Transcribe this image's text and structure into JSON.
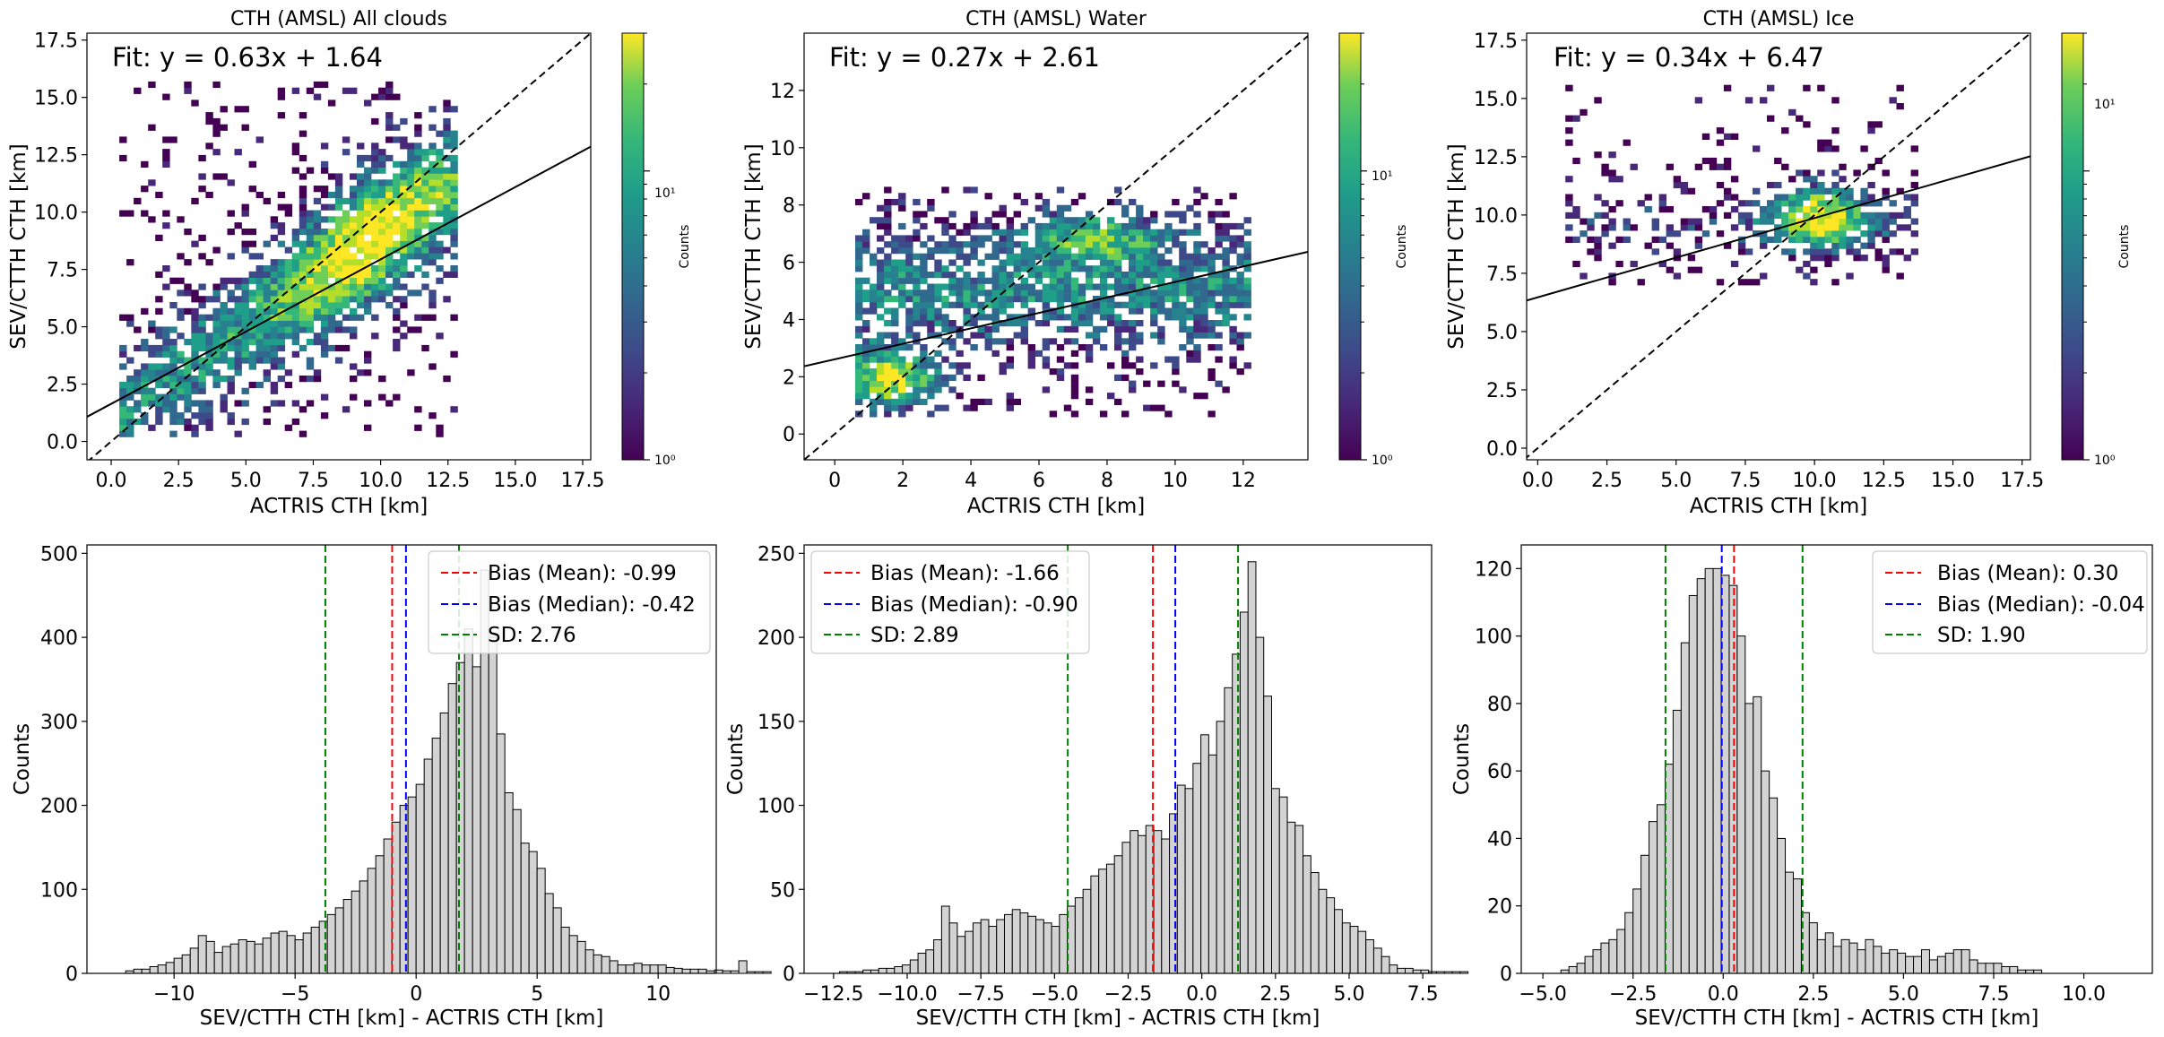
{
  "figure": {
    "colorbar_label": "Counts"
  },
  "chart_data": [
    {
      "type": "heatmap",
      "panel": "scatter-all",
      "title": "CTH (AMSL) All clouds",
      "xlabel": "ACTRIS CTH [km]",
      "ylabel": "SEV/CTTH CTH [km]",
      "xlim": [
        -0.9,
        17.8
      ],
      "ylim": [
        -0.8,
        17.8
      ],
      "xticks": [
        "0.0",
        "2.5",
        "5.0",
        "7.5",
        "10.0",
        "12.5",
        "15.0",
        "17.5"
      ],
      "yticks": [
        "0.0",
        "2.5",
        "5.0",
        "7.5",
        "10.0",
        "12.5",
        "15.0",
        "17.5"
      ],
      "fit_text": "Fit: y = 0.63x + 1.64",
      "fit": {
        "slope": 0.63,
        "intercept": 1.64
      },
      "colorbar": {
        "scale": "log",
        "range": [
          1,
          30
        ],
        "ticks": [
          "10⁰",
          "10¹"
        ]
      },
      "cloud": {
        "xmin": 0.3,
        "xmax": 12.8,
        "ymin": 0.2,
        "ymax": 15.6,
        "core_x": 9.5,
        "core_y": 8.5
      },
      "grid": false
    },
    {
      "type": "heatmap",
      "panel": "scatter-water",
      "title": "CTH (AMSL) Water",
      "xlabel": "ACTRIS CTH [km]",
      "ylabel": "SEV/CTTH CTH [km]",
      "xlim": [
        -0.9,
        13.9
      ],
      "ylim": [
        -0.9,
        14.0
      ],
      "xticks": [
        "0",
        "2",
        "4",
        "6",
        "8",
        "10",
        "12"
      ],
      "yticks": [
        "0",
        "2",
        "4",
        "6",
        "8",
        "10",
        "12"
      ],
      "fit_text": "Fit: y = 0.27x + 2.61",
      "fit": {
        "slope": 0.27,
        "intercept": 2.61
      },
      "colorbar": {
        "scale": "log",
        "range": [
          1,
          30
        ],
        "ticks": [
          "10⁰",
          "10¹"
        ]
      },
      "cloud": {
        "xmin": 0.6,
        "xmax": 12.2,
        "ymin": 0.6,
        "ymax": 8.5,
        "core_x": 1.5,
        "core_y": 1.8
      },
      "grid": false
    },
    {
      "type": "heatmap",
      "panel": "scatter-ice",
      "title": "CTH (AMSL) Ice",
      "xlabel": "ACTRIS CTH [km]",
      "ylabel": "SEV/CTTH CTH [km]",
      "xlim": [
        -0.4,
        17.8
      ],
      "ylim": [
        -0.5,
        17.8
      ],
      "xticks": [
        "0.0",
        "2.5",
        "5.0",
        "7.5",
        "10.0",
        "12.5",
        "15.0",
        "17.5"
      ],
      "yticks": [
        "0.0",
        "2.5",
        "5.0",
        "7.5",
        "10.0",
        "12.5",
        "15.0",
        "17.5"
      ],
      "fit_text": "Fit: y = 0.34x + 6.47",
      "fit": {
        "slope": 0.34,
        "intercept": 6.47
      },
      "colorbar": {
        "scale": "log",
        "range": [
          1,
          30
        ],
        "ticks": [
          "10⁰",
          "10¹"
        ]
      },
      "cloud": {
        "xmin": 1.0,
        "xmax": 13.5,
        "ymin": 7.0,
        "ymax": 15.5,
        "core_x": 10.0,
        "core_y": 9.8
      },
      "grid": false
    },
    {
      "type": "bar",
      "panel": "hist-all",
      "xlabel": "SEV/CTTH CTH [km] - ACTRIS CTH [km]",
      "ylabel": "Counts",
      "xlim": [
        -13.6,
        12.4
      ],
      "ylim": [
        0,
        510
      ],
      "xticks": [
        -10,
        -5,
        0,
        5,
        10
      ],
      "xtick_labels": [
        "−10",
        "−5",
        "0",
        "5",
        "10"
      ],
      "yticks": [
        0,
        100,
        200,
        300,
        400,
        500
      ],
      "bins": {
        "start": -12.0,
        "width": 0.3333
      },
      "values": [
        3,
        5,
        5,
        8,
        10,
        13,
        18,
        22,
        30,
        45,
        38,
        25,
        32,
        35,
        40,
        38,
        35,
        42,
        48,
        50,
        45,
        40,
        48,
        55,
        62,
        70,
        78,
        88,
        98,
        110,
        125,
        140,
        160,
        180,
        200,
        210,
        225,
        255,
        280,
        310,
        345,
        370,
        410,
        365,
        480,
        400,
        285,
        215,
        195,
        155,
        145,
        125,
        95,
        78,
        55,
        45,
        38,
        28,
        22,
        20,
        15,
        10,
        10,
        12,
        10,
        10,
        10,
        7,
        6,
        5,
        5,
        5,
        3,
        4,
        3,
        3,
        15,
        2,
        2,
        2
      ],
      "lines": [
        {
          "x": -0.99,
          "color": "#ff0000",
          "label": "Bias (Mean): -0.99"
        },
        {
          "x": -0.42,
          "color": "#0000ff",
          "label": "Bias (Median): -0.42"
        },
        {
          "x": -3.75,
          "color": "#008000",
          "label": "SD: 2.76"
        },
        {
          "x": 1.77,
          "color": "#008000",
          "label": ""
        }
      ],
      "legend": {
        "placement": "upper right",
        "entries": [
          "Bias (Mean): -0.99",
          "Bias (Median): -0.42",
          "SD: 2.76"
        ]
      },
      "grid": false
    },
    {
      "type": "bar",
      "panel": "hist-water",
      "xlabel": "SEV/CTTH CTH [km] - ACTRIS CTH [km]",
      "ylabel": "Counts",
      "xlim": [
        -13.5,
        7.8
      ],
      "ylim": [
        0,
        255
      ],
      "xticks": [
        -12.5,
        -10,
        -7.5,
        -5,
        -2.5,
        0,
        2.5,
        5,
        7.5
      ],
      "xtick_labels": [
        "−12.5",
        "−10.0",
        "−7.5",
        "−5.0",
        "−2.5",
        "0.0",
        "2.5",
        "5.0",
        "7.5"
      ],
      "yticks": [
        0,
        50,
        100,
        150,
        200,
        250
      ],
      "bins": {
        "start": -12.3,
        "width": 0.2667
      },
      "values": [
        1,
        1,
        1,
        2,
        2,
        3,
        3,
        4,
        5,
        8,
        12,
        14,
        20,
        40,
        30,
        22,
        25,
        30,
        32,
        28,
        32,
        35,
        38,
        36,
        34,
        32,
        30,
        28,
        35,
        40,
        45,
        50,
        58,
        62,
        65,
        70,
        78,
        85,
        82,
        88,
        85,
        80,
        95,
        112,
        110,
        125,
        142,
        130,
        150,
        170,
        190,
        215,
        245,
        200,
        165,
        110,
        105,
        90,
        88,
        70,
        60,
        50,
        45,
        38,
        30,
        28,
        25,
        20,
        15,
        10,
        5,
        3,
        3,
        2,
        2,
        1,
        1,
        1,
        1,
        1
      ],
      "lines": [
        {
          "x": -1.66,
          "color": "#ff0000",
          "label": "Bias (Mean): -1.66"
        },
        {
          "x": -0.9,
          "color": "#0000ff",
          "label": "Bias (Median): -0.90"
        },
        {
          "x": -4.55,
          "color": "#008000",
          "label": "SD: 2.89"
        },
        {
          "x": 1.23,
          "color": "#008000",
          "label": ""
        }
      ],
      "legend": {
        "placement": "upper left",
        "entries": [
          "Bias (Mean): -1.66",
          "Bias (Median): -0.90",
          "SD: 2.89"
        ]
      },
      "grid": false
    },
    {
      "type": "bar",
      "panel": "hist-ice",
      "xlabel": "SEV/CTTH CTH [km] - ACTRIS CTH [km]",
      "ylabel": "Counts",
      "xlim": [
        -5.6,
        11.9
      ],
      "ylim": [
        0,
        127
      ],
      "xticks": [
        -5,
        -2.5,
        0,
        2.5,
        5,
        7.5,
        10
      ],
      "xtick_labels": [
        "−5.0",
        "−2.5",
        "0.0",
        "2.5",
        "5.0",
        "7.5",
        "10.0"
      ],
      "yticks": [
        0,
        20,
        40,
        60,
        80,
        100,
        120
      ],
      "bins": {
        "start": -4.5,
        "width": 0.2222
      },
      "values": [
        1,
        2,
        3,
        5,
        7,
        9,
        10,
        13,
        18,
        25,
        35,
        45,
        50,
        62,
        78,
        98,
        112,
        117,
        120,
        120,
        118,
        115,
        100,
        80,
        82,
        60,
        52,
        40,
        30,
        28,
        18,
        15,
        10,
        12,
        8,
        10,
        9,
        7,
        10,
        8,
        6,
        7,
        6,
        5,
        5,
        7,
        4,
        5,
        6,
        7,
        7,
        4,
        3,
        3,
        3,
        2,
        2,
        1,
        1,
        1
      ],
      "lines": [
        {
          "x": 0.3,
          "color": "#ff0000",
          "label": "Bias (Mean): 0.30"
        },
        {
          "x": -0.04,
          "color": "#0000ff",
          "label": "Bias (Median): -0.04"
        },
        {
          "x": -1.6,
          "color": "#008000",
          "label": "SD: 1.90"
        },
        {
          "x": 2.2,
          "color": "#008000",
          "label": ""
        }
      ],
      "legend": {
        "placement": "upper right",
        "entries": [
          "Bias (Mean): 0.30",
          "Bias (Median): -0.04",
          "SD: 1.90"
        ]
      },
      "grid": false
    }
  ]
}
